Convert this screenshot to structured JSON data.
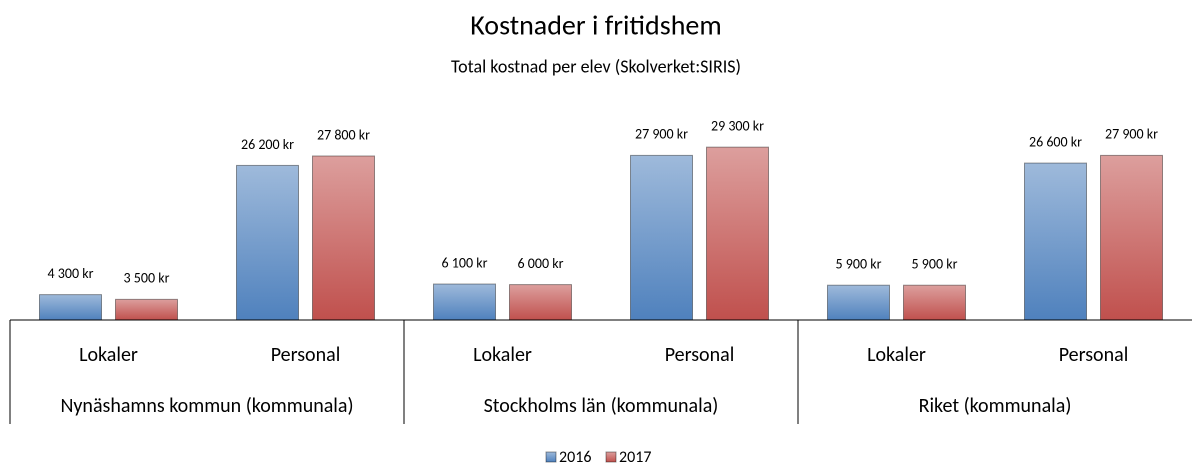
{
  "chart_data": {
    "type": "bar",
    "title": "Kostnader i fritidshem",
    "subtitle": "Total kostnad per elev (Skolverket:SIRIS)",
    "categories": [
      "Lokaler",
      "Personal",
      "Lokaler",
      "Personal",
      "Lokaler",
      "Personal"
    ],
    "category_groups": [
      "Nynäshamns kommun (kommunala)",
      "Stockholms län (kommunala)",
      "Riket (kommunala)"
    ],
    "series": [
      {
        "name": "2016",
        "color": "#4f81bd",
        "values": [
          4300,
          26200,
          6100,
          27900,
          5900,
          26600
        ],
        "value_labels": [
          "4 300 kr",
          "26 200 kr",
          "6 100 kr",
          "27 900 kr",
          "5 900 kr",
          "26 600 kr"
        ]
      },
      {
        "name": "2017",
        "color": "#c0504d",
        "values": [
          3500,
          27800,
          6000,
          29300,
          5900,
          27900
        ],
        "value_labels": [
          "3 500 kr",
          "27 800 kr",
          "6 000 kr",
          "29 300 kr",
          "5 900 kr",
          "27 900 kr"
        ]
      }
    ],
    "ylim": [
      0,
      30000
    ],
    "legend": "bottom"
  }
}
